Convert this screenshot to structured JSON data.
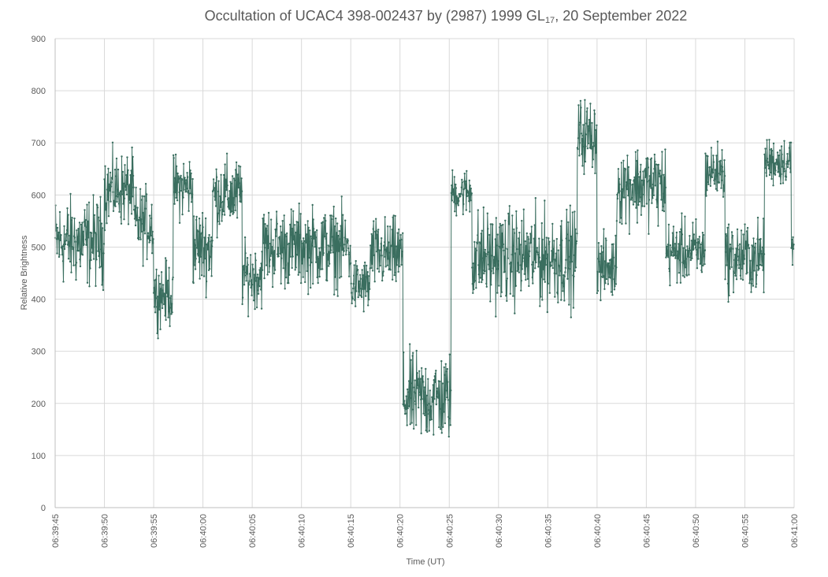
{
  "chart_data": {
    "type": "line",
    "title": {
      "prefix": "Occultation of UCAC4 398-002437 by (2987) 1999 GL",
      "subscript": "17",
      "suffix": ", 20 September 2022"
    },
    "xlabel": "Time (UT)",
    "ylabel": "Relative Brightness",
    "xlim": [
      "06:39:45",
      "06:41:00"
    ],
    "ylim": [
      0,
      900
    ],
    "yticks": [
      0,
      100,
      200,
      300,
      400,
      500,
      600,
      700,
      800,
      900
    ],
    "xtick_labels": [
      "06:39:45",
      "06:39:50",
      "06:39:55",
      "06:40:00",
      "06:40:05",
      "06:40:10",
      "06:40:15",
      "06:40:20",
      "06:40:25",
      "06:40:30",
      "06:40:35",
      "06:40:40",
      "06:40:45",
      "06:40:50",
      "06:40:55",
      "06:41:00"
    ],
    "grid": true,
    "legend": "none",
    "series_color": "#3a6e5f",
    "series": [
      {
        "sampling_interval_s": 0.04,
        "approximate_profile": [
          {
            "from": "06:39:45",
            "to": "06:39:50",
            "mean": 510,
            "spread": 55
          },
          {
            "from": "06:39:50",
            "to": "06:39:53",
            "mean": 610,
            "spread": 45
          },
          {
            "from": "06:39:53",
            "to": "06:39:55",
            "mean": 545,
            "spread": 45
          },
          {
            "from": "06:39:55",
            "to": "06:39:57",
            "mean": 410,
            "spread": 40
          },
          {
            "from": "06:39:57",
            "to": "06:39:59",
            "mean": 615,
            "spread": 40
          },
          {
            "from": "06:39:59",
            "to": "06:40:01",
            "mean": 500,
            "spread": 50
          },
          {
            "from": "06:40:01",
            "to": "06:40:04",
            "mean": 600,
            "spread": 45
          },
          {
            "from": "06:40:04",
            "to": "06:40:06",
            "mean": 445,
            "spread": 40
          },
          {
            "from": "06:40:06",
            "to": "06:40:15",
            "mean": 500,
            "spread": 50
          },
          {
            "from": "06:40:15",
            "to": "06:40:17",
            "mean": 425,
            "spread": 35
          },
          {
            "from": "06:40:17",
            "to": "06:40:20.3",
            "mean": 485,
            "spread": 45
          },
          {
            "from": "06:40:20.3",
            "to": "06:40:25.2",
            "mean": 210,
            "spread": 55
          },
          {
            "from": "06:40:25.2",
            "to": "06:40:27.3",
            "mean": 605,
            "spread": 30
          },
          {
            "from": "06:40:27.3",
            "to": "06:40:38",
            "mean": 480,
            "spread": 60
          },
          {
            "from": "06:40:38",
            "to": "06:40:40",
            "mean": 715,
            "spread": 45
          },
          {
            "from": "06:40:40",
            "to": "06:40:42",
            "mean": 460,
            "spread": 40
          },
          {
            "from": "06:40:42",
            "to": "06:40:47",
            "mean": 620,
            "spread": 50
          },
          {
            "from": "06:40:47",
            "to": "06:40:51",
            "mean": 490,
            "spread": 40
          },
          {
            "from": "06:40:51",
            "to": "06:40:53",
            "mean": 645,
            "spread": 35
          },
          {
            "from": "06:40:53",
            "to": "06:40:57",
            "mean": 480,
            "spread": 45
          },
          {
            "from": "06:40:57",
            "to": "06:40:59.7",
            "mean": 665,
            "spread": 30
          },
          {
            "from": "06:40:59.7",
            "to": "06:41:00",
            "mean": 495,
            "spread": 40
          }
        ]
      }
    ]
  }
}
